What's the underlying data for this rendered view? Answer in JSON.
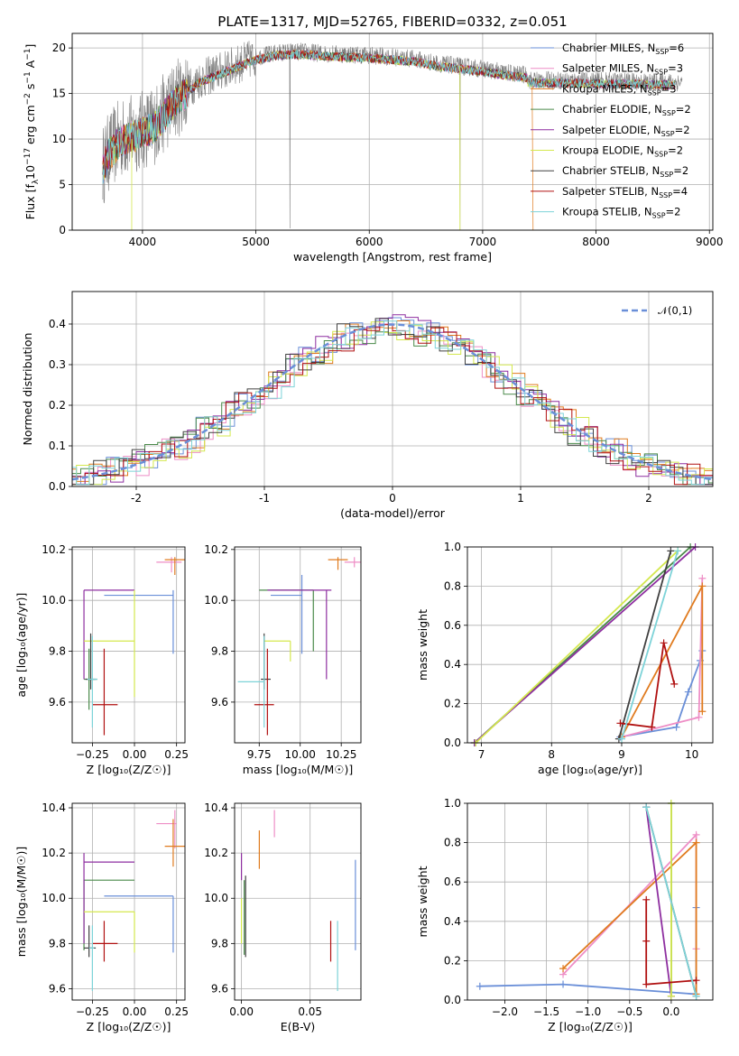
{
  "title": "PLATE=1317, MJD=52765, FIBERID=0332, z=0.051",
  "colors": {
    "Chabrier MILES": "#6a8fd8",
    "Salpeter MILES": "#ee8ec6",
    "Kroupa MILES": "#e07b1f",
    "Chabrier ELODIE": "#4a8a4a",
    "Salpeter ELODIE": "#8e2fa0",
    "Kroupa ELODIE": "#d4e84e",
    "Chabrier STELIB": "#404040",
    "Salpeter STELIB": "#b01010",
    "Kroupa STELIB": "#7dd3d8"
  },
  "chart_data": [
    {
      "id": "spectrum",
      "type": "line",
      "xlabel": "wavelength [Angstrom, rest frame]",
      "ylabel": "Flux [f_λ10^-17 erg cm^-2 s^-1 A^-1]",
      "ylabel_parts": {
        "base": "Flux [f",
        "sub1": "λ",
        "mid": "10",
        "sup1": "−17",
        "rest1": " erg cm",
        "sup2": "−2",
        "rest2": " s",
        "sup3": "−1",
        "rest3": " A",
        "sup4": "−1",
        "end": "]"
      },
      "xlim": [
        3380,
        9030
      ],
      "ylim": [
        0,
        21.6
      ],
      "xticks": [
        4000,
        5000,
        6000,
        7000,
        8000,
        9000
      ],
      "yticks": [
        0,
        5,
        10,
        15,
        20
      ],
      "legend_position": "top-right",
      "data_envelope": {
        "x": [
          3650,
          3700,
          3800,
          3900,
          4000,
          4100,
          4200,
          4300,
          4400,
          4500,
          4600,
          4700,
          4800,
          4900,
          5000,
          5200,
          5400,
          5600,
          5800,
          6000,
          6200,
          6400,
          6600,
          6800,
          7000,
          7200,
          7400
        ],
        "y": [
          7,
          8.5,
          10,
          10.5,
          11,
          11.5,
          13,
          14.5,
          15.5,
          16.5,
          17,
          17.5,
          18,
          18.5,
          19,
          19.5,
          19.6,
          19.4,
          19.3,
          19.2,
          19,
          18.8,
          18.3,
          18,
          17.7,
          17.3,
          17
        ]
      },
      "series": [
        {
          "name": "Chabrier MILES",
          "nssp": "6"
        },
        {
          "name": "Salpeter MILES",
          "nssp": "3"
        },
        {
          "name": "Kroupa MILES",
          "nssp": "3"
        },
        {
          "name": "Chabrier ELODIE",
          "nssp": "2"
        },
        {
          "name": "Salpeter ELODIE",
          "nssp": "2"
        },
        {
          "name": "Kroupa ELODIE",
          "nssp": "2"
        },
        {
          "name": "Chabrier STELIB",
          "nssp": "2"
        },
        {
          "name": "Salpeter STELIB",
          "nssp": "4"
        },
        {
          "name": "Kroupa STELIB",
          "nssp": "2"
        }
      ],
      "legend_sub": "SSP"
    },
    {
      "id": "residuals",
      "type": "histogram",
      "xlabel": "(data-model)/error",
      "ylabel": "Normed distribution",
      "xlim": [
        -2.5,
        2.5
      ],
      "ylim": [
        0,
        0.48
      ],
      "xticks": [
        -2,
        -1,
        0,
        1,
        2
      ],
      "yticks": [
        0.0,
        0.1,
        0.2,
        0.3,
        0.4
      ],
      "reference": {
        "name": "𝒩(0,1)",
        "mu": 0,
        "sigma": 1
      },
      "legend_position": "top-right"
    },
    {
      "id": "age-Z",
      "type": "errorbar",
      "xlabel": "Z [log₁₀(Z/Z☉)]",
      "ylabel": "age  [log₁₀(age/yr)]",
      "xlim": [
        -0.37,
        0.3
      ],
      "ylim": [
        9.44,
        10.21
      ],
      "xticks": [
        -0.25,
        0.0,
        0.25
      ],
      "xticklabels": [
        "−0.25",
        "0.00",
        "0.25"
      ],
      "yticks": [
        9.6,
        9.8,
        10.0,
        10.2
      ],
      "yticklabels": [
        "9.6",
        "9.8",
        "10.0",
        "10.2"
      ],
      "points": [
        {
          "name": "Chabrier MILES",
          "x": 0.23,
          "y": 10.02,
          "xl": -0.18,
          "xh": 0.23,
          "yl": 9.79,
          "yh": 10.04
        },
        {
          "name": "Salpeter MILES",
          "x": 0.22,
          "y": 10.15,
          "xl": 0.13,
          "xh": 0.28,
          "yl": 10.11,
          "yh": 10.17
        },
        {
          "name": "Kroupa MILES",
          "x": 0.24,
          "y": 10.16,
          "xl": 0.18,
          "xh": 0.3,
          "yl": 10.1,
          "yh": 10.17
        },
        {
          "name": "Chabrier ELODIE",
          "x": -0.27,
          "y": 9.69,
          "xl": -0.3,
          "xh": -0.22,
          "yl": 9.57,
          "yh": 9.81
        },
        {
          "name": "Salpeter ELODIE",
          "x": -0.3,
          "y": 10.04,
          "xl": -0.3,
          "xh": 0.0,
          "yl": 9.69,
          "yh": 10.04
        },
        {
          "name": "Kroupa ELODIE",
          "x": 0.0,
          "y": 9.84,
          "xl": -0.3,
          "xh": 0.0,
          "yl": 9.62,
          "yh": 10.04
        },
        {
          "name": "Chabrier STELIB",
          "x": -0.26,
          "y": 9.69,
          "xl": -0.29,
          "xh": -0.23,
          "yl": 9.65,
          "yh": 9.87
        },
        {
          "name": "Salpeter STELIB",
          "x": -0.18,
          "y": 9.59,
          "xl": -0.25,
          "xh": -0.1,
          "yl": 9.47,
          "yh": 9.81
        },
        {
          "name": "Kroupa STELIB",
          "x": -0.25,
          "y": 9.69,
          "xl": -0.28,
          "xh": -0.22,
          "yl": 9.5,
          "yh": 9.86
        }
      ]
    },
    {
      "id": "age-mass",
      "type": "errorbar",
      "xlabel": "mass [log₁₀(M/M☉)]",
      "xlim": [
        9.6,
        10.37
      ],
      "ylim": [
        9.44,
        10.21
      ],
      "xticks": [
        9.75,
        10.0,
        10.25
      ],
      "xticklabels": [
        "9.75",
        "10.00",
        "10.25"
      ],
      "yticks": [
        9.6,
        9.8,
        10.0,
        10.2
      ],
      "yticklabels": [
        "9.6",
        "9.8",
        "10.0",
        "10.2"
      ],
      "points": [
        {
          "name": "Chabrier MILES",
          "x": 10.01,
          "y": 10.02,
          "xl": 9.82,
          "xh": 10.01,
          "yl": 9.79,
          "yh": 10.1
        },
        {
          "name": "Salpeter MILES",
          "x": 10.33,
          "y": 10.15,
          "xl": 10.27,
          "xh": 10.37,
          "yl": 10.13,
          "yh": 10.17
        },
        {
          "name": "Kroupa MILES",
          "x": 10.23,
          "y": 10.16,
          "xl": 10.17,
          "xh": 10.29,
          "yl": 10.12,
          "yh": 10.17
        },
        {
          "name": "Chabrier ELODIE",
          "x": 10.08,
          "y": 10.04,
          "xl": 9.75,
          "xh": 10.08,
          "yl": 9.8,
          "yh": 10.04
        },
        {
          "name": "Salpeter ELODIE",
          "x": 10.16,
          "y": 10.04,
          "xl": 9.8,
          "xh": 10.19,
          "yl": 9.69,
          "yh": 10.04
        },
        {
          "name": "Kroupa ELODIE",
          "x": 9.94,
          "y": 9.84,
          "xl": 9.78,
          "xh": 9.94,
          "yl": 9.76,
          "yh": 9.84
        },
        {
          "name": "Chabrier STELIB",
          "x": 9.78,
          "y": 9.69,
          "xl": 9.76,
          "xh": 9.82,
          "yl": 9.65,
          "yh": 9.87
        },
        {
          "name": "Salpeter STELIB",
          "x": 9.8,
          "y": 9.59,
          "xl": 9.72,
          "xh": 9.84,
          "yl": 9.47,
          "yh": 9.81
        },
        {
          "name": "Kroupa STELIB",
          "x": 9.78,
          "y": 9.68,
          "xl": 9.62,
          "xh": 9.78,
          "yl": 9.5,
          "yh": 9.86
        }
      ]
    },
    {
      "id": "weight-age",
      "type": "line",
      "xlabel": "age  [log₁₀(age/yr)]",
      "ylabel": "mass weight",
      "xlim": [
        6.8,
        10.3
      ],
      "ylim": [
        0,
        1
      ],
      "xticks": [
        7,
        8,
        9,
        10
      ],
      "yticks": [
        0.0,
        0.2,
        0.4,
        0.6,
        0.8,
        1.0
      ],
      "yticklabels": [
        "0.0",
        "0.2",
        "0.4",
        "0.6",
        "0.8",
        "1.0"
      ],
      "series": [
        {
          "name": "Chabrier MILES",
          "x": [
            8.98,
            9.78,
            9.95,
            10.12,
            10.15
          ],
          "y": [
            0.03,
            0.08,
            0.26,
            0.42,
            0.47
          ]
        },
        {
          "name": "Salpeter MILES",
          "x": [
            9.0,
            10.1,
            10.15
          ],
          "y": [
            0.03,
            0.13,
            0.84
          ]
        },
        {
          "name": "Kroupa MILES",
          "x": [
            9.0,
            10.15,
            10.15
          ],
          "y": [
            0.03,
            0.8,
            0.16
          ]
        },
        {
          "name": "Chabrier ELODIE",
          "x": [
            6.9,
            9.98
          ],
          "y": [
            0.0,
            1.0
          ]
        },
        {
          "name": "Salpeter ELODIE",
          "x": [
            6.9,
            10.05
          ],
          "y": [
            0.0,
            1.0
          ]
        },
        {
          "name": "Kroupa ELODIE",
          "x": [
            6.92,
            9.8
          ],
          "y": [
            0.0,
            0.98
          ]
        },
        {
          "name": "Chabrier STELIB",
          "x": [
            8.96,
            9.7
          ],
          "y": [
            0.02,
            0.98
          ]
        },
        {
          "name": "Salpeter STELIB",
          "x": [
            8.98,
            9.43,
            9.6,
            9.75
          ],
          "y": [
            0.1,
            0.08,
            0.51,
            0.3
          ]
        },
        {
          "name": "Kroupa STELIB",
          "x": [
            9.0,
            9.8
          ],
          "y": [
            0.02,
            0.98
          ]
        }
      ]
    },
    {
      "id": "mass-Z",
      "type": "errorbar",
      "xlabel": "Z [log₁₀(Z/Z☉)]",
      "ylabel": "mass [log₁₀(M/M☉)]",
      "xlim": [
        -0.37,
        0.3
      ],
      "ylim": [
        9.55,
        10.42
      ],
      "xticks": [
        -0.25,
        0.0,
        0.25
      ],
      "xticklabels": [
        "−0.25",
        "0.00",
        "0.25"
      ],
      "yticks": [
        9.6,
        9.8,
        10.0,
        10.2,
        10.4
      ],
      "yticklabels": [
        "9.6",
        "9.8",
        "10.0",
        "10.2",
        "10.4"
      ],
      "points": [
        {
          "name": "Chabrier MILES",
          "x": 0.23,
          "y": 10.01,
          "xl": -0.18,
          "xh": 0.23,
          "yl": 9.76,
          "yh": 10.01
        },
        {
          "name": "Salpeter MILES",
          "x": 0.24,
          "y": 10.33,
          "xl": 0.13,
          "xh": 0.25,
          "yl": 10.22,
          "yh": 10.39
        },
        {
          "name": "Kroupa MILES",
          "x": 0.23,
          "y": 10.23,
          "xl": 0.18,
          "xh": 0.3,
          "yl": 10.14,
          "yh": 10.35
        },
        {
          "name": "Chabrier ELODIE",
          "x": -0.3,
          "y": 10.08,
          "xl": -0.3,
          "xh": 0.0,
          "yl": 9.77,
          "yh": 10.08
        },
        {
          "name": "Salpeter ELODIE",
          "x": -0.3,
          "y": 10.16,
          "xl": -0.3,
          "xh": 0.0,
          "yl": 9.8,
          "yh": 10.2
        },
        {
          "name": "Kroupa ELODIE",
          "x": 0.0,
          "y": 9.94,
          "xl": -0.3,
          "xh": 0.0,
          "yl": 9.76,
          "yh": 9.94
        },
        {
          "name": "Chabrier STELIB",
          "x": -0.27,
          "y": 9.78,
          "xl": -0.3,
          "xh": -0.23,
          "yl": 9.74,
          "yh": 9.88
        },
        {
          "name": "Salpeter STELIB",
          "x": -0.18,
          "y": 9.8,
          "xl": -0.25,
          "xh": -0.1,
          "yl": 9.72,
          "yh": 9.9
        },
        {
          "name": "Kroupa STELIB",
          "x": -0.25,
          "y": 9.78,
          "xl": -0.27,
          "xh": -0.24,
          "yl": 9.59,
          "yh": 9.88
        }
      ]
    },
    {
      "id": "mass-ebv",
      "type": "errorbar",
      "xlabel": "E(B-V)",
      "xlim": [
        -0.005,
        0.087
      ],
      "ylim": [
        9.55,
        10.42
      ],
      "xticks": [
        0.0,
        0.05
      ],
      "xticklabels": [
        "0.00",
        "0.05"
      ],
      "yticks": [
        9.6,
        9.8,
        10.0,
        10.2,
        10.4
      ],
      "yticklabels": [
        "9.6",
        "9.8",
        "10.0",
        "10.2",
        "10.4"
      ],
      "points": [
        {
          "name": "Chabrier MILES",
          "x": 0.083,
          "y": 9.97,
          "yl": 9.77,
          "yh": 10.17
        },
        {
          "name": "Salpeter MILES",
          "x": 0.024,
          "y": 10.33,
          "yl": 10.27,
          "yh": 10.39
        },
        {
          "name": "Kroupa MILES",
          "x": 0.013,
          "y": 10.21,
          "yl": 10.13,
          "yh": 10.3
        },
        {
          "name": "Chabrier ELODIE",
          "x": 0.002,
          "y": 9.92,
          "yl": 9.75,
          "yh": 10.08
        },
        {
          "name": "Salpeter ELODIE",
          "x": 0.0,
          "y": 10.14,
          "yl": 10.08,
          "yh": 10.2
        },
        {
          "name": "Kroupa ELODIE",
          "x": 0.0,
          "y": 9.9,
          "yl": 9.8,
          "yh": 10.0
        },
        {
          "name": "Chabrier STELIB",
          "x": 0.003,
          "y": 9.88,
          "yl": 9.74,
          "yh": 10.1
        },
        {
          "name": "Salpeter STELIB",
          "x": 0.065,
          "y": 9.81,
          "yl": 9.72,
          "yh": 9.9
        },
        {
          "name": "Kroupa STELIB",
          "x": 0.07,
          "y": 9.75,
          "yl": 9.59,
          "yh": 9.9
        }
      ]
    },
    {
      "id": "weight-Z",
      "type": "line",
      "xlabel": "Z [log₁₀(Z/Z☉)]",
      "ylabel": "mass weight",
      "xlim": [
        -2.45,
        0.5
      ],
      "ylim": [
        0,
        1
      ],
      "xticks": [
        -2.0,
        -1.5,
        -1.0,
        -0.5,
        0.0
      ],
      "xticklabels": [
        "−2.0",
        "−1.5",
        "−1.0",
        "−0.5",
        "0.0"
      ],
      "yticks": [
        0.0,
        0.2,
        0.4,
        0.6,
        0.8,
        1.0
      ],
      "yticklabels": [
        "0.0",
        "0.2",
        "0.4",
        "0.6",
        "0.8",
        "1.0"
      ],
      "series": [
        {
          "name": "Chabrier MILES",
          "x": [
            -2.3,
            -1.3,
            0.3,
            0.3
          ],
          "y": [
            0.07,
            0.08,
            0.03,
            0.47
          ]
        },
        {
          "name": "Salpeter MILES",
          "x": [
            -1.3,
            0.3,
            0.3
          ],
          "y": [
            0.13,
            0.84,
            0.26
          ]
        },
        {
          "name": "Kroupa MILES",
          "x": [
            -1.3,
            0.3,
            0.3
          ],
          "y": [
            0.16,
            0.8,
            0.03
          ]
        },
        {
          "name": "Chabrier ELODIE",
          "x": [
            0.0,
            0.0
          ],
          "y": [
            0.02,
            1.0
          ]
        },
        {
          "name": "Salpeter ELODIE",
          "x": [
            -0.3,
            0.0
          ],
          "y": [
            0.98,
            0.02
          ]
        },
        {
          "name": "Kroupa ELODIE",
          "x": [
            0.0,
            0.0
          ],
          "y": [
            0.02,
            1.0
          ]
        },
        {
          "name": "Chabrier STELIB",
          "x": [
            -0.3,
            0.3
          ],
          "y": [
            0.98,
            0.02
          ]
        },
        {
          "name": "Salpeter STELIB",
          "x": [
            -0.3,
            -0.3,
            -0.3,
            0.3
          ],
          "y": [
            0.51,
            0.3,
            0.08,
            0.1
          ]
        },
        {
          "name": "Kroupa STELIB",
          "x": [
            -0.3,
            0.3
          ],
          "y": [
            0.98,
            0.02
          ]
        }
      ]
    }
  ]
}
